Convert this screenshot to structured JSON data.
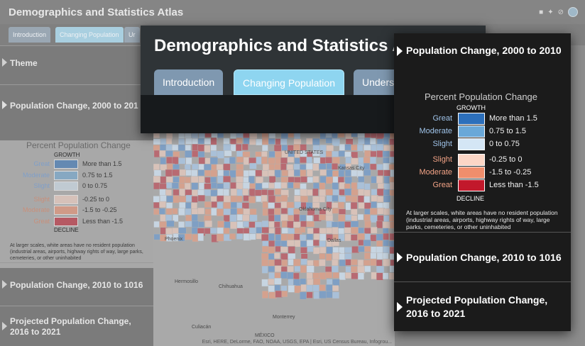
{
  "app": {
    "title": "Demographics and Statistics Atlas",
    "share_icons": [
      "facebook-icon",
      "twitter-icon",
      "link-icon",
      "globe-icon"
    ]
  },
  "tabs": [
    {
      "label": "Introduction",
      "active": false
    },
    {
      "label": "Changing Population",
      "active": true
    },
    {
      "label": "Unders",
      "active": false
    }
  ],
  "background_tabs": [
    {
      "label": "Introduction",
      "active": false
    },
    {
      "label": "Changing Population",
      "active": true
    },
    {
      "label": "Ur",
      "active": false
    }
  ],
  "sidebar": {
    "sections": [
      {
        "label": "Theme",
        "expanded": false
      },
      {
        "label": "Population Change, 2000 to 2010",
        "expanded": true
      },
      {
        "label": "Population Change, 2010 to 1016",
        "expanded": false
      },
      {
        "label": "Projected Population Change, 2016 to 2021",
        "expanded": false
      }
    ],
    "background_truncated_section": "Population Change, 2000 to 201"
  },
  "legend": {
    "title": "Percent Population Change",
    "growth_label": "GROWTH",
    "decline_label": "DECLINE",
    "rows": [
      {
        "name": "Great",
        "range": "More than 1.5",
        "color": "#2c6fbb",
        "kind": "growth"
      },
      {
        "name": "Moderate",
        "range": "0.75 to 1.5",
        "color": "#6aa8d8",
        "kind": "growth"
      },
      {
        "name": "Slight",
        "range": "0 to 0.75",
        "color": "#d4e6f5",
        "kind": "growth"
      },
      {
        "name": "Slight",
        "range": "-0.25 to 0",
        "color": "#fcd6c6",
        "kind": "decline"
      },
      {
        "name": "Moderate",
        "range": "-1.5 to -0.25",
        "color": "#f08e6c",
        "kind": "decline"
      },
      {
        "name": "Great",
        "range": "Less than -1.5",
        "color": "#c2182b",
        "kind": "decline"
      }
    ],
    "note": "At larger scales, white areas have no resident population (industrial areas, airports, highway rights of way, large parks, cemeteries, or other uninhabited"
  },
  "map": {
    "labels": [
      "UNITED STATES",
      "Kansas City",
      "Oklahoma City",
      "Dallas",
      "Phoenix",
      "Chihuahua",
      "Hermosillo",
      "Monterrey",
      "Culiacán",
      "MÉXICO"
    ],
    "attribution": "Esri, HERE, DeLorme, FAO, NOAA, USGS, EPA | Esri, US Census Bureau, Infogrou..."
  },
  "colors": {
    "front_header_bg": "#2f3437",
    "front_panel_bg": "#1b1b1b",
    "tab_active": "#8ed5f0",
    "tab_inactive": "#7f98b0",
    "growth_text": "#9fc3e9",
    "decline_text": "#f3a386"
  }
}
